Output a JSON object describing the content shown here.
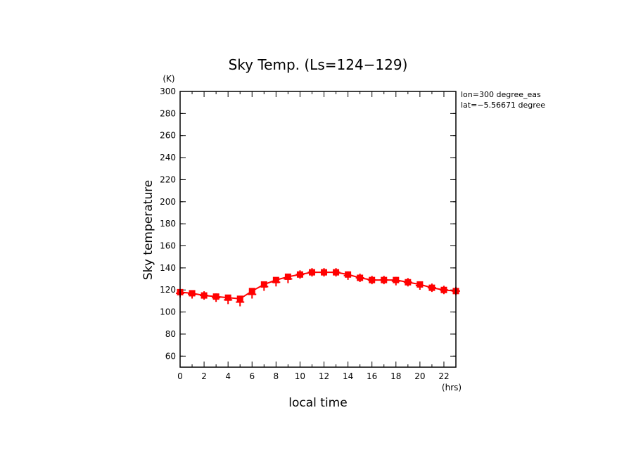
{
  "chart_data": {
    "type": "line",
    "title": "Sky Temp. (Ls=124−129)",
    "xlabel": "local time",
    "ylabel": "Sky temperature",
    "x_unit": "(hrs)",
    "y_unit": "(K)",
    "xlim": [
      0,
      23
    ],
    "ylim": [
      50,
      300
    ],
    "x_ticks": [
      0,
      2,
      4,
      6,
      8,
      10,
      12,
      14,
      16,
      18,
      20,
      22
    ],
    "y_ticks": [
      60,
      80,
      100,
      120,
      140,
      160,
      180,
      200,
      220,
      240,
      260,
      280,
      300
    ],
    "annotations": [
      "lon=300 degree_eas",
      "lat=−5.56671 degree"
    ],
    "color": "#ff0000",
    "series": [
      {
        "marker": "square",
        "x": [
          0,
          1,
          2,
          3,
          4,
          5,
          6,
          7,
          8,
          9,
          10,
          11,
          12,
          13,
          14,
          15,
          16,
          17,
          18,
          19,
          20,
          21,
          22,
          23
        ],
        "values": [
          118,
          117,
          115,
          114,
          113,
          112,
          119,
          125,
          129,
          132,
          134,
          136,
          136,
          136,
          134,
          131,
          129,
          129,
          129,
          127,
          125,
          122,
          120,
          119
        ]
      },
      {
        "marker": "plus",
        "x": [
          0,
          1,
          2,
          3,
          4,
          5,
          6,
          7,
          8,
          9,
          10,
          11,
          12,
          13,
          14,
          15,
          16,
          17,
          18,
          19,
          20,
          21,
          22,
          23
        ],
        "values": [
          117,
          116,
          115,
          113,
          111,
          109,
          116,
          123,
          127,
          130,
          134,
          136,
          136,
          136,
          133,
          131,
          129,
          129,
          128,
          127,
          124,
          122,
          120,
          119
        ]
      }
    ]
  }
}
